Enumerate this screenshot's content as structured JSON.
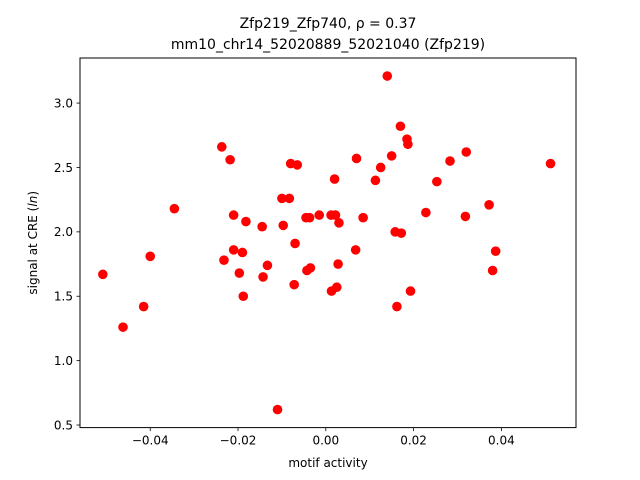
{
  "chart_data": {
    "type": "scatter",
    "title_line1": "Zfp219_Zfp740, ρ = 0.37",
    "title_line2": "mm10_chr14_52020889_52021040 (Zfp219)",
    "xlabel": "motif activity",
    "ylabel": "signal at CRE (ln)",
    "ylabel_prefix": "signal at CRE (",
    "ylabel_var": "ln",
    "ylabel_suffix": ")",
    "xlim": [
      -0.056,
      0.057
    ],
    "ylim": [
      0.48,
      3.35
    ],
    "xticks": [
      -0.04,
      -0.02,
      0.0,
      0.02,
      0.04
    ],
    "xtick_labels": [
      "−0.04",
      "−0.02",
      "0.00",
      "0.02",
      "0.04"
    ],
    "yticks": [
      0.5,
      1.0,
      1.5,
      2.0,
      2.5,
      3.0
    ],
    "ytick_labels": [
      "0.5",
      "1.0",
      "1.5",
      "2.0",
      "2.5",
      "3.0"
    ],
    "color": "#ff0000",
    "grid": false,
    "points": [
      {
        "x": -0.0508,
        "y": 1.67
      },
      {
        "x": -0.0462,
        "y": 1.26
      },
      {
        "x": -0.0415,
        "y": 1.42
      },
      {
        "x": -0.04,
        "y": 1.81
      },
      {
        "x": -0.0345,
        "y": 2.18
      },
      {
        "x": -0.0237,
        "y": 2.66
      },
      {
        "x": -0.0232,
        "y": 1.78
      },
      {
        "x": -0.0218,
        "y": 2.56
      },
      {
        "x": -0.021,
        "y": 2.13
      },
      {
        "x": -0.021,
        "y": 1.86
      },
      {
        "x": -0.0197,
        "y": 1.68
      },
      {
        "x": -0.019,
        "y": 1.84
      },
      {
        "x": -0.0188,
        "y": 1.5
      },
      {
        "x": -0.0182,
        "y": 2.08
      },
      {
        "x": -0.0145,
        "y": 2.04
      },
      {
        "x": -0.0143,
        "y": 1.65
      },
      {
        "x": -0.0133,
        "y": 1.74
      },
      {
        "x": -0.011,
        "y": 0.62
      },
      {
        "x": -0.01,
        "y": 2.26
      },
      {
        "x": -0.0097,
        "y": 2.05
      },
      {
        "x": -0.0083,
        "y": 2.26
      },
      {
        "x": -0.008,
        "y": 2.53
      },
      {
        "x": -0.0072,
        "y": 1.59
      },
      {
        "x": -0.007,
        "y": 1.91
      },
      {
        "x": -0.0065,
        "y": 2.52
      },
      {
        "x": -0.0045,
        "y": 2.11
      },
      {
        "x": -0.0043,
        "y": 1.7
      },
      {
        "x": -0.0037,
        "y": 2.11
      },
      {
        "x": -0.0035,
        "y": 1.72
      },
      {
        "x": -0.0015,
        "y": 2.13
      },
      {
        "x": 0.0012,
        "y": 2.13
      },
      {
        "x": 0.0013,
        "y": 1.54
      },
      {
        "x": 0.002,
        "y": 2.41
      },
      {
        "x": 0.0022,
        "y": 2.13
      },
      {
        "x": 0.0025,
        "y": 1.57
      },
      {
        "x": 0.0028,
        "y": 1.75
      },
      {
        "x": 0.003,
        "y": 2.07
      },
      {
        "x": 0.0068,
        "y": 1.86
      },
      {
        "x": 0.007,
        "y": 2.57
      },
      {
        "x": 0.0085,
        "y": 2.11
      },
      {
        "x": 0.0113,
        "y": 2.4
      },
      {
        "x": 0.0125,
        "y": 2.5
      },
      {
        "x": 0.014,
        "y": 3.21
      },
      {
        "x": 0.015,
        "y": 2.59
      },
      {
        "x": 0.0158,
        "y": 2.0
      },
      {
        "x": 0.0162,
        "y": 1.42
      },
      {
        "x": 0.017,
        "y": 2.82
      },
      {
        "x": 0.0172,
        "y": 1.99
      },
      {
        "x": 0.0185,
        "y": 2.72
      },
      {
        "x": 0.0187,
        "y": 2.68
      },
      {
        "x": 0.0193,
        "y": 1.54
      },
      {
        "x": 0.0228,
        "y": 2.15
      },
      {
        "x": 0.0253,
        "y": 2.39
      },
      {
        "x": 0.0283,
        "y": 2.55
      },
      {
        "x": 0.0318,
        "y": 2.12
      },
      {
        "x": 0.032,
        "y": 2.62
      },
      {
        "x": 0.0372,
        "y": 2.21
      },
      {
        "x": 0.038,
        "y": 1.7
      },
      {
        "x": 0.0387,
        "y": 1.85
      },
      {
        "x": 0.0512,
        "y": 2.53
      }
    ]
  }
}
